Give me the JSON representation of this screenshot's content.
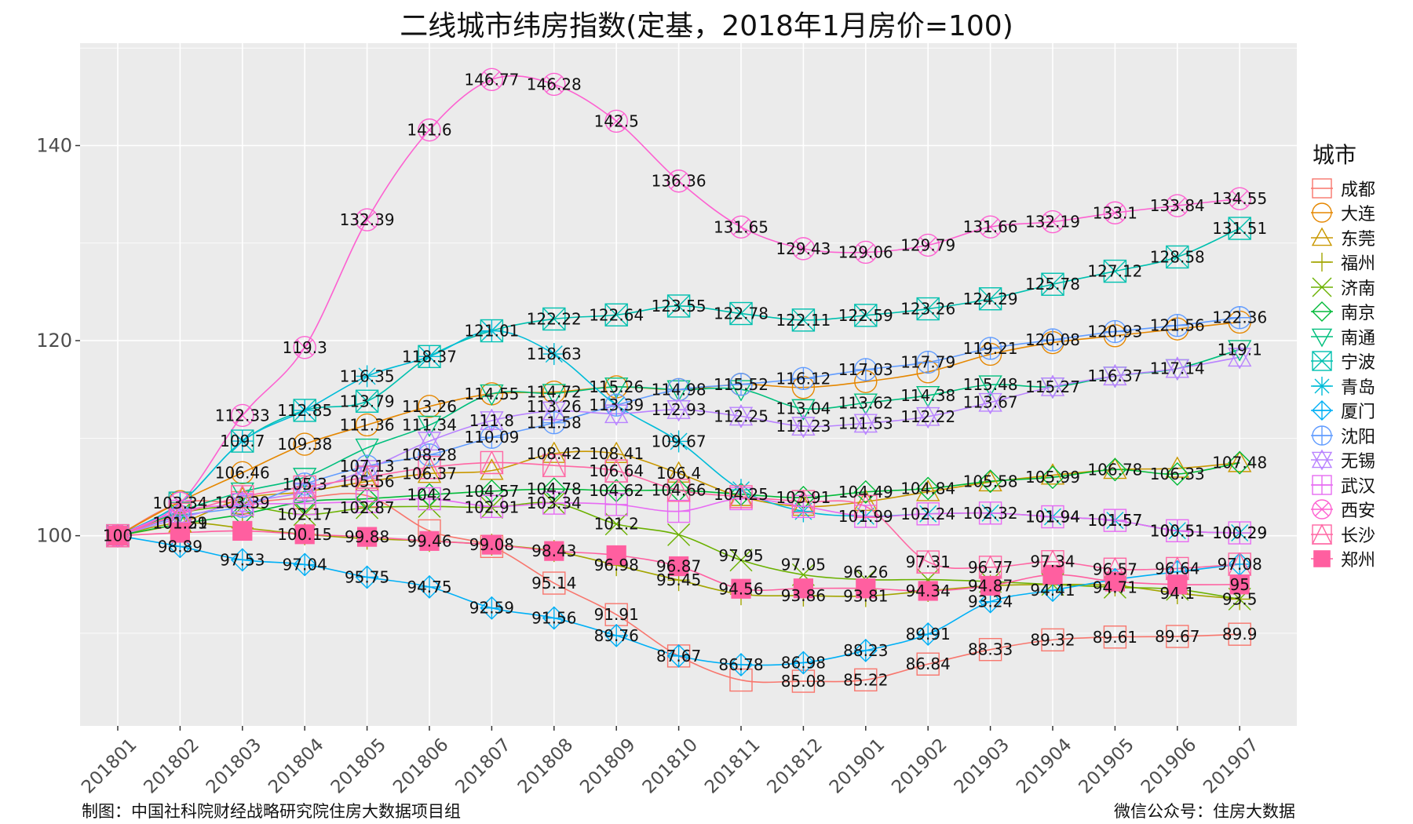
{
  "chart_data": {
    "type": "line",
    "title": "二线城市纬房指数(定基，2018年1月房价=100)",
    "xlabel": "",
    "ylabel": "",
    "categories": [
      "201801",
      "201802",
      "201803",
      "201804",
      "201805",
      "201806",
      "201807",
      "201808",
      "201809",
      "201810",
      "201811",
      "201812",
      "201901",
      "201902",
      "201903",
      "201904",
      "201905",
      "201906",
      "201907"
    ],
    "ylim": [
      80.5,
      150.5
    ],
    "yticks": [
      100,
      120,
      140
    ],
    "grid": true,
    "legend": {
      "title": "城市",
      "position": "right"
    },
    "series": [
      {
        "name": "成都",
        "color": "#F8766D",
        "shape": "square-open",
        "values": [
          100,
          103.34,
          103.39,
          103.9,
          104.1,
          100.5,
          98.9,
          95.14,
          91.91,
          87.67,
          85.2,
          85.08,
          85.22,
          86.84,
          88.33,
          89.32,
          89.61,
          89.67,
          89.9
        ],
        "labeled": [
          false,
          true,
          false,
          false,
          false,
          false,
          false,
          true,
          true,
          false,
          false,
          true,
          true,
          true,
          true,
          true,
          true,
          true,
          true
        ]
      },
      {
        "name": "大连",
        "color": "#E58700",
        "shape": "circle-open",
        "values": [
          100,
          103.5,
          106.46,
          109.38,
          111.36,
          113.26,
          114.55,
          114.72,
          115.26,
          114.98,
          115.52,
          115.2,
          115.8,
          116.8,
          118.6,
          119.8,
          120.5,
          121.2,
          121.9
        ],
        "labeled": [
          false,
          false,
          true,
          true,
          true,
          true,
          true,
          true,
          true,
          false,
          false,
          false,
          false,
          false,
          false,
          false,
          false,
          false,
          false
        ]
      },
      {
        "name": "东莞",
        "color": "#C99800",
        "shape": "triangle-open",
        "values": [
          100,
          101.29,
          103.8,
          104.5,
          105.56,
          106.37,
          106.68,
          108.42,
          108.41,
          106.4,
          104.0,
          103.0,
          103.5,
          104.5,
          105.5,
          106.2,
          106.78,
          106.9,
          107.48
        ],
        "labeled": [
          false,
          true,
          false,
          false,
          true,
          true,
          false,
          true,
          true,
          true,
          false,
          false,
          false,
          false,
          false,
          false,
          true,
          false,
          true
        ]
      },
      {
        "name": "福州",
        "color": "#A3A500",
        "shape": "plus",
        "values": [
          100,
          101.31,
          100.8,
          100.15,
          99.7,
          99.46,
          99.08,
          98.43,
          96.98,
          95.45,
          94.0,
          93.86,
          93.81,
          94.34,
          94.87,
          95.0,
          94.9,
          94.1,
          93.5
        ],
        "labeled": [
          false,
          true,
          false,
          true,
          false,
          false,
          true,
          true,
          true,
          true,
          false,
          true,
          true,
          true,
          true,
          false,
          false,
          true,
          true
        ]
      },
      {
        "name": "济南",
        "color": "#6BB100",
        "shape": "cross",
        "values": [
          100,
          102.3,
          103.0,
          102.17,
          102.87,
          103.0,
          102.91,
          103.34,
          101.2,
          100.1,
          97.5,
          96.0,
          95.5,
          95.5,
          95.3,
          95.0,
          94.71,
          94.5,
          93.5
        ],
        "labeled": [
          false,
          false,
          false,
          true,
          true,
          false,
          true,
          true,
          true,
          false,
          false,
          false,
          false,
          false,
          false,
          false,
          true,
          false,
          false
        ]
      },
      {
        "name": "南京",
        "color": "#00BA38",
        "shape": "diamond-open",
        "values": [
          100,
          101.2,
          102.2,
          103.5,
          103.79,
          104.2,
          104.57,
          104.78,
          104.62,
          104.66,
          104.25,
          103.91,
          104.49,
          104.84,
          105.58,
          105.99,
          106.78,
          106.33,
          107.48
        ],
        "labeled": [
          false,
          false,
          false,
          false,
          false,
          true,
          true,
          true,
          true,
          true,
          true,
          true,
          true,
          true,
          true,
          true,
          false,
          true,
          false
        ]
      },
      {
        "name": "南通",
        "color": "#00BF7D",
        "shape": "triangle-down-open",
        "values": [
          100,
          102.5,
          104.5,
          106.0,
          109.0,
          111.34,
          114.55,
          114.6,
          115.26,
          114.98,
          115.0,
          113.04,
          113.62,
          114.38,
          115.48,
          115.27,
          116.37,
          117.14,
          119.1
        ],
        "labeled": [
          false,
          false,
          false,
          false,
          false,
          true,
          false,
          false,
          false,
          true,
          false,
          true,
          true,
          true,
          true,
          true,
          true,
          true,
          true
        ]
      },
      {
        "name": "宁波",
        "color": "#00C0AF",
        "shape": "square-cross",
        "values": [
          100,
          103.34,
          109.7,
          112.85,
          113.79,
          118.37,
          121.01,
          122.22,
          122.64,
          123.55,
          122.78,
          122.11,
          122.59,
          123.26,
          124.29,
          125.78,
          127.12,
          128.58,
          131.51
        ],
        "labeled": [
          false,
          false,
          true,
          true,
          true,
          true,
          true,
          true,
          true,
          true,
          true,
          true,
          true,
          true,
          true,
          true,
          true,
          true,
          true
        ]
      },
      {
        "name": "青岛",
        "color": "#00BCD8",
        "shape": "asterisk",
        "values": [
          100,
          103.34,
          109.7,
          112.85,
          116.35,
          118.37,
          121.01,
          118.63,
          113.39,
          109.67,
          104.7,
          102.5,
          102.0,
          102.24,
          102.32,
          101.94,
          101.57,
          100.51,
          100.29
        ],
        "labeled": [
          false,
          false,
          false,
          false,
          true,
          false,
          false,
          true,
          false,
          true,
          false,
          false,
          false,
          false,
          false,
          true,
          true,
          true,
          true
        ]
      },
      {
        "name": "厦门",
        "color": "#00B0F6",
        "shape": "diamond-plus",
        "values": [
          100,
          98.89,
          97.53,
          97.04,
          95.75,
          94.75,
          92.59,
          91.56,
          89.76,
          87.67,
          86.78,
          86.98,
          88.23,
          89.91,
          93.24,
          94.41,
          95.5,
          96.3,
          97.08
        ],
        "labeled": [
          false,
          true,
          true,
          true,
          true,
          true,
          true,
          true,
          true,
          true,
          true,
          true,
          true,
          true,
          true,
          true,
          false,
          false,
          true
        ]
      },
      {
        "name": "沈阳",
        "color": "#619CFF",
        "shape": "circle-plus",
        "values": [
          100,
          102.0,
          103.0,
          105.3,
          107.13,
          108.28,
          110.09,
          111.58,
          113.39,
          114.98,
          115.52,
          116.12,
          117.03,
          117.79,
          119.21,
          120.08,
          120.93,
          121.56,
          122.36
        ],
        "labeled": [
          false,
          false,
          false,
          true,
          true,
          true,
          true,
          true,
          true,
          false,
          true,
          true,
          true,
          true,
          true,
          true,
          true,
          true,
          true
        ]
      },
      {
        "name": "无锡",
        "color": "#B983FF",
        "shape": "star-open",
        "values": [
          100,
          101.8,
          103.39,
          104.5,
          106.8,
          109.7,
          111.8,
          112.8,
          112.5,
          112.93,
          112.25,
          111.23,
          111.53,
          112.22,
          113.67,
          115.27,
          116.37,
          117.14,
          118.3
        ],
        "labeled": [
          false,
          false,
          true,
          false,
          false,
          false,
          true,
          false,
          false,
          true,
          true,
          true,
          true,
          true,
          true,
          false,
          false,
          false,
          false
        ]
      },
      {
        "name": "武汉",
        "color": "#E76BF3",
        "shape": "square-plus",
        "values": [
          100,
          102.5,
          103.2,
          103.3,
          103.5,
          103.79,
          103.0,
          103.34,
          103.2,
          102.5,
          103.8,
          103.0,
          101.99,
          102.24,
          102.32,
          101.94,
          101.57,
          100.51,
          100.29
        ],
        "labeled": [
          false,
          false,
          false,
          false,
          false,
          false,
          false,
          false,
          false,
          false,
          false,
          false,
          true,
          true,
          true,
          true,
          true,
          true,
          true
        ]
      },
      {
        "name": "西安",
        "color": "#FD61D1",
        "shape": "circle-cross",
        "values": [
          100,
          103.34,
          112.33,
          119.3,
          132.39,
          141.6,
          146.77,
          146.28,
          142.5,
          136.36,
          131.65,
          129.43,
          129.06,
          129.79,
          131.66,
          132.19,
          133.1,
          133.84,
          134.55
        ],
        "labeled": [
          false,
          false,
          true,
          true,
          true,
          true,
          true,
          true,
          true,
          true,
          true,
          true,
          true,
          true,
          true,
          true,
          true,
          true,
          true
        ]
      },
      {
        "name": "长沙",
        "color": "#FF67A4",
        "shape": "triangle-square",
        "values": [
          100,
          102.2,
          104.0,
          105.0,
          106.0,
          107.0,
          107.5,
          107.2,
          106.64,
          104.66,
          104.0,
          103.5,
          103.0,
          97.31,
          96.77,
          97.34,
          96.57,
          96.64,
          97.08
        ],
        "labeled": [
          false,
          false,
          false,
          false,
          false,
          false,
          false,
          false,
          true,
          false,
          false,
          false,
          false,
          true,
          true,
          true,
          true,
          true,
          false
        ]
      },
      {
        "name": "郑州",
        "color": "#FF5FA0",
        "shape": "square-filled",
        "values": [
          100,
          100.3,
          100.5,
          100.15,
          99.88,
          99.46,
          99.08,
          98.43,
          98.0,
          96.87,
          94.56,
          94.6,
          94.6,
          94.34,
          94.87,
          96.0,
          95.3,
          95.0,
          95.0
        ],
        "labeled": [
          true,
          false,
          false,
          false,
          true,
          true,
          false,
          false,
          false,
          true,
          true,
          false,
          false,
          false,
          false,
          false,
          false,
          false,
          true
        ]
      }
    ],
    "extra_labels": [
      {
        "x": "201811",
        "y": 97.95
      },
      {
        "x": "201812",
        "y": 97.05
      },
      {
        "x": "201901",
        "y": 96.26
      },
      {
        "x": "201808",
        "y": 113.26
      }
    ]
  },
  "footer": {
    "left": "制图：中国社科院财经战略研究院住房大数据项目组",
    "right": "微信公众号：住房大数据"
  }
}
